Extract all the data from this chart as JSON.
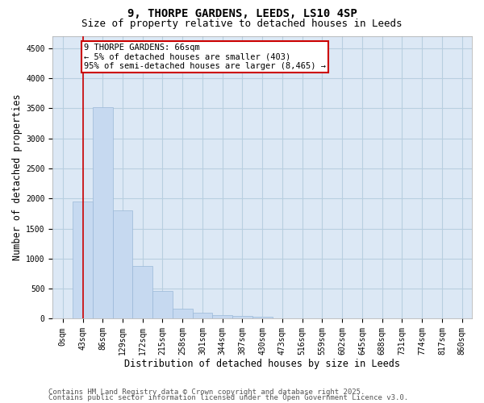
{
  "title_line1": "9, THORPE GARDENS, LEEDS, LS10 4SP",
  "title_line2": "Size of property relative to detached houses in Leeds",
  "xlabel": "Distribution of detached houses by size in Leeds",
  "ylabel": "Number of detached properties",
  "categories": [
    "0sqm",
    "43sqm",
    "86sqm",
    "129sqm",
    "172sqm",
    "215sqm",
    "258sqm",
    "301sqm",
    "344sqm",
    "387sqm",
    "430sqm",
    "473sqm",
    "516sqm",
    "559sqm",
    "602sqm",
    "645sqm",
    "688sqm",
    "731sqm",
    "774sqm",
    "817sqm",
    "860sqm"
  ],
  "bar_heights": [
    0,
    1950,
    3520,
    1800,
    880,
    460,
    170,
    105,
    65,
    40,
    30,
    0,
    0,
    0,
    0,
    0,
    0,
    0,
    0,
    0,
    0
  ],
  "bar_color": "#c6d9f0",
  "bar_edgecolor": "#9ab8d8",
  "vertical_line_x": 1,
  "vertical_line_color": "#cc0000",
  "annotation_text": "9 THORPE GARDENS: 66sqm\n← 5% of detached houses are smaller (403)\n95% of semi-detached houses are larger (8,465) →",
  "annotation_box_edgecolor": "#cc0000",
  "annotation_box_facecolor": "#ffffff",
  "ylim": [
    0,
    4700
  ],
  "yticks": [
    0,
    500,
    1000,
    1500,
    2000,
    2500,
    3000,
    3500,
    4000,
    4500
  ],
  "ax_facecolor": "#dce8f5",
  "background_color": "#ffffff",
  "grid_color": "#b8cfe0",
  "footer_line1": "Contains HM Land Registry data © Crown copyright and database right 2025.",
  "footer_line2": "Contains public sector information licensed under the Open Government Licence v3.0.",
  "title_fontsize": 10,
  "subtitle_fontsize": 9,
  "axis_label_fontsize": 8.5,
  "tick_fontsize": 7,
  "annotation_fontsize": 7.5,
  "footer_fontsize": 6.5
}
